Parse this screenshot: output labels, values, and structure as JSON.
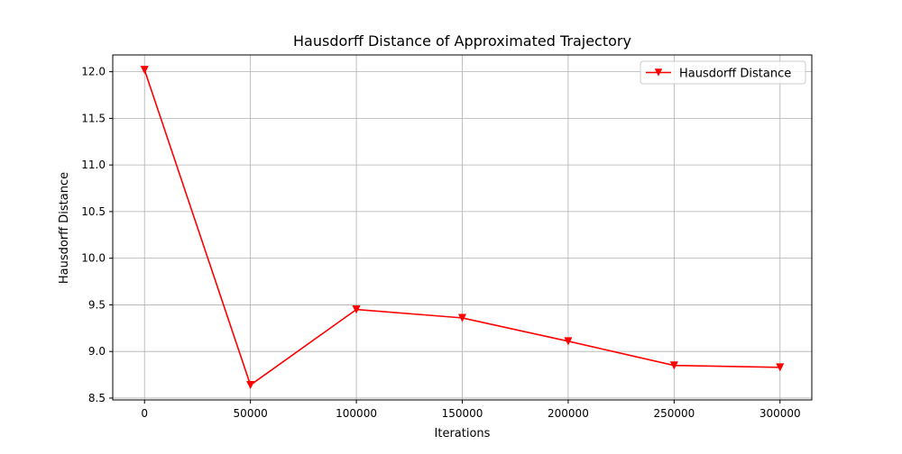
{
  "chart_data": {
    "type": "line",
    "title": "Hausdorff Distance of Approximated Trajectory",
    "xlabel": "Iterations",
    "ylabel": "Hausdorff Distance",
    "x": [
      0,
      50000,
      100000,
      150000,
      200000,
      250000,
      300000
    ],
    "series": [
      {
        "name": "Hausdorff Distance",
        "color": "#ff0000",
        "marker": "triangle-down",
        "values": [
          12.02,
          8.64,
          9.45,
          9.36,
          9.11,
          8.85,
          8.83
        ]
      }
    ],
    "xticks": [
      0,
      50000,
      100000,
      150000,
      200000,
      250000,
      300000
    ],
    "xtick_labels": [
      "0",
      "50000",
      "100000",
      "150000",
      "200000",
      "250000",
      "300000"
    ],
    "yticks": [
      8.5,
      9.0,
      9.5,
      10.0,
      10.5,
      11.0,
      11.5,
      12.0
    ],
    "ytick_labels": [
      "8.5",
      "9.0",
      "9.5",
      "10.0",
      "10.5",
      "11.0",
      "11.5",
      "12.0"
    ],
    "xlim": [
      -15000,
      315000
    ],
    "ylim": [
      8.48,
      12.18
    ],
    "grid": true,
    "legend_position": "top-right"
  }
}
